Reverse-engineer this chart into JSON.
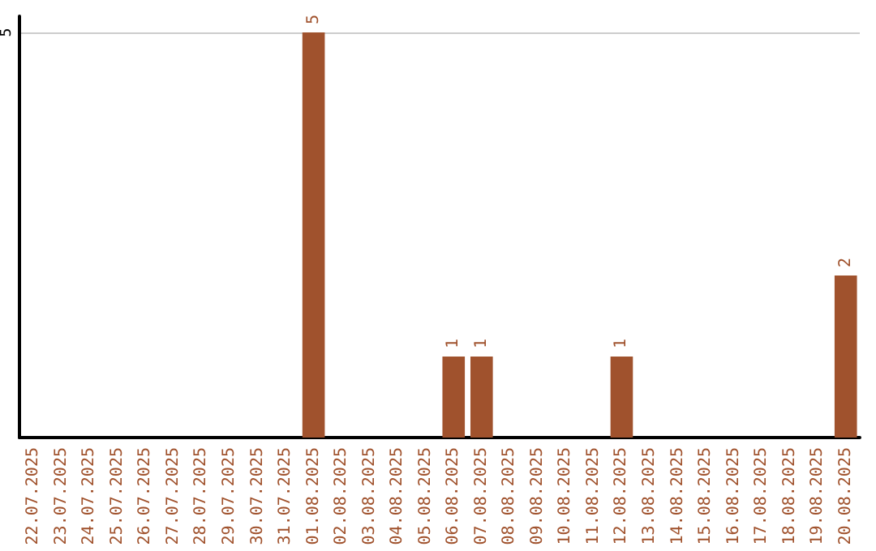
{
  "chart_data": {
    "type": "bar",
    "categories": [
      "22.07.2025",
      "23.07.2025",
      "24.07.2025",
      "25.07.2025",
      "26.07.2025",
      "27.07.2025",
      "28.07.2025",
      "29.07.2025",
      "30.07.2025",
      "31.07.2025",
      "01.08.2025",
      "02.08.2025",
      "03.08.2025",
      "04.08.2025",
      "05.08.2025",
      "06.08.2025",
      "07.08.2025",
      "08.08.2025",
      "09.08.2025",
      "10.08.2025",
      "11.08.2025",
      "12.08.2025",
      "13.08.2025",
      "14.08.2025",
      "15.08.2025",
      "16.08.2025",
      "17.08.2025",
      "18.08.2025",
      "19.08.2025",
      "20.08.2025"
    ],
    "values": [
      0,
      0,
      0,
      0,
      0,
      0,
      0,
      0,
      0,
      0,
      5,
      0,
      0,
      0,
      0,
      1,
      1,
      0,
      0,
      0,
      0,
      1,
      0,
      0,
      0,
      0,
      0,
      0,
      0,
      2
    ],
    "value_labels": [
      null,
      null,
      null,
      null,
      null,
      null,
      null,
      null,
      null,
      null,
      "5",
      null,
      null,
      null,
      null,
      "1",
      "1",
      null,
      null,
      null,
      null,
      "1",
      null,
      null,
      null,
      null,
      null,
      null,
      null,
      "2"
    ],
    "color": "#a0522d",
    "ylim": [
      0,
      5.2
    ],
    "yticks": [
      5
    ],
    "grid": "y"
  }
}
